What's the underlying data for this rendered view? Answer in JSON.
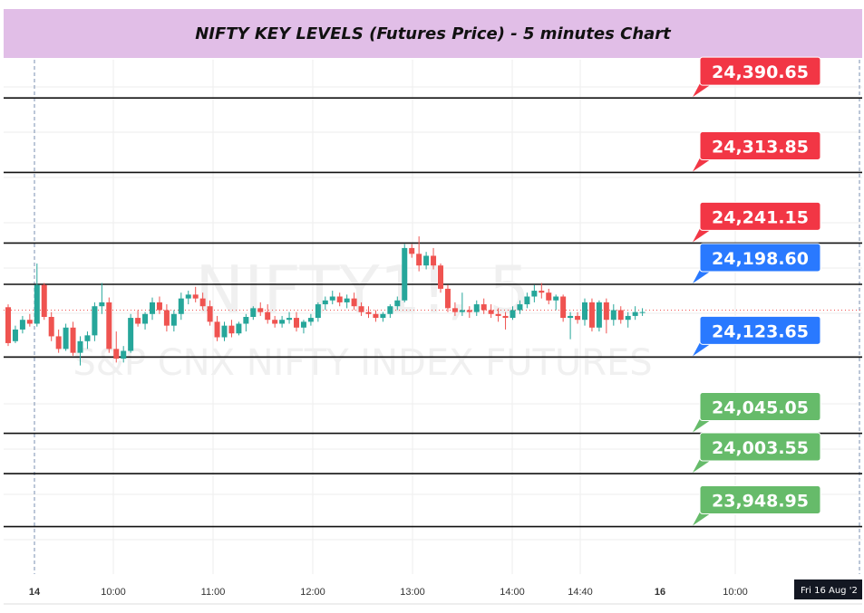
{
  "header": {
    "title": "NIFTY KEY LEVELS (Futures Price) - 5 minutes Chart"
  },
  "watermark": {
    "symbol": "NIFTY1!, 5",
    "name": "S&P CNX NIFTY INDEX FUTURES"
  },
  "colors": {
    "up": "#26a69a",
    "down": "#ef5350",
    "resistance": "#f23645",
    "pivot": "#2979ff",
    "support": "#66bb6a",
    "level_line": "#111111",
    "grid": "#eeeeee",
    "header_bg": "#e1bee7"
  },
  "chart_data": {
    "type": "candlestick",
    "title": "NIFTY KEY LEVELS (Futures Price) - 5 minutes Chart",
    "x_ticks": [
      {
        "label": "14",
        "bold": true
      },
      {
        "label": "10:00",
        "bold": false
      },
      {
        "label": "11:00",
        "bold": false
      },
      {
        "label": "12:00",
        "bold": false
      },
      {
        "label": "13:00",
        "bold": false
      },
      {
        "label": "14:00",
        "bold": false
      },
      {
        "label": "14:40",
        "bold": false
      },
      {
        "label": "16",
        "bold": true
      },
      {
        "label": "10:00",
        "bold": false
      }
    ],
    "date_badge": "Fri 16 Aug '2",
    "ylim": [
      23900,
      24430
    ],
    "levels": [
      {
        "value": 24390.65,
        "label": "24,390.65",
        "kind": "resistance"
      },
      {
        "value": 24313.85,
        "label": "24,313.85",
        "kind": "resistance"
      },
      {
        "value": 24241.15,
        "label": "24,241.15",
        "kind": "resistance"
      },
      {
        "value": 24198.6,
        "label": "24,198.60",
        "kind": "pivot"
      },
      {
        "value": 24123.65,
        "label": "24,123.65",
        "kind": "pivot"
      },
      {
        "value": 24045.05,
        "label": "24,045.05",
        "kind": "support"
      },
      {
        "value": 24003.55,
        "label": "24,003.55",
        "kind": "support"
      },
      {
        "value": 23948.95,
        "label": "23,948.95",
        "kind": "support"
      }
    ],
    "last_price": 24172,
    "candles": [
      [
        24175,
        24178,
        24135,
        24138
      ],
      [
        24140,
        24156,
        24138,
        24152
      ],
      [
        24152,
        24166,
        24148,
        24162
      ],
      [
        24162,
        24168,
        24155,
        24158
      ],
      [
        24158,
        24220,
        24155,
        24198
      ],
      [
        24198,
        24200,
        24162,
        24165
      ],
      [
        24165,
        24170,
        24140,
        24145
      ],
      [
        24145,
        24152,
        24128,
        24132
      ],
      [
        24132,
        24158,
        24130,
        24154
      ],
      [
        24154,
        24160,
        24125,
        24128
      ],
      [
        24128,
        24145,
        24115,
        24140
      ],
      [
        24140,
        24150,
        24132,
        24146
      ],
      [
        24146,
        24180,
        24140,
        24176
      ],
      [
        24176,
        24200,
        24168,
        24180
      ],
      [
        24180,
        24185,
        24128,
        24132
      ],
      [
        24132,
        24150,
        24118,
        24122
      ],
      [
        24122,
        24135,
        24118,
        24130
      ],
      [
        24130,
        24168,
        24128,
        24164
      ],
      [
        24164,
        24172,
        24155,
        24158
      ],
      [
        24158,
        24170,
        24152,
        24168
      ],
      [
        24168,
        24185,
        24162,
        24180
      ],
      [
        24180,
        24186,
        24168,
        24172
      ],
      [
        24172,
        24178,
        24150,
        24156
      ],
      [
        24156,
        24172,
        24150,
        24168
      ],
      [
        24168,
        24190,
        24162,
        24184
      ],
      [
        24184,
        24192,
        24178,
        24188
      ],
      [
        24188,
        24196,
        24180,
        24184
      ],
      [
        24184,
        24190,
        24172,
        24176
      ],
      [
        24176,
        24182,
        24156,
        24160
      ],
      [
        24160,
        24166,
        24140,
        24144
      ],
      [
        24144,
        24160,
        24140,
        24156
      ],
      [
        24156,
        24162,
        24144,
        24148
      ],
      [
        24148,
        24160,
        24146,
        24158
      ],
      [
        24158,
        24168,
        24150,
        24165
      ],
      [
        24165,
        24176,
        24162,
        24174
      ],
      [
        24174,
        24180,
        24166,
        24170
      ],
      [
        24170,
        24178,
        24158,
        24162
      ],
      [
        24162,
        24166,
        24154,
        24158
      ],
      [
        24158,
        24166,
        24154,
        24162
      ],
      [
        24162,
        24170,
        24158,
        24164
      ],
      [
        24164,
        24170,
        24150,
        24154
      ],
      [
        24154,
        24162,
        24148,
        24160
      ],
      [
        24160,
        24168,
        24156,
        24164
      ],
      [
        24164,
        24180,
        24160,
        24178
      ],
      [
        24178,
        24186,
        24172,
        24182
      ],
      [
        24182,
        24192,
        24178,
        24186
      ],
      [
        24186,
        24190,
        24176,
        24180
      ],
      [
        24180,
        24188,
        24174,
        24184
      ],
      [
        24184,
        24190,
        24172,
        24176
      ],
      [
        24176,
        24180,
        24166,
        24170
      ],
      [
        24170,
        24176,
        24164,
        24168
      ],
      [
        24168,
        24172,
        24160,
        24164
      ],
      [
        24164,
        24170,
        24160,
        24168
      ],
      [
        24168,
        24178,
        24164,
        24176
      ],
      [
        24176,
        24186,
        24172,
        24182
      ],
      [
        24182,
        24240,
        24180,
        24236
      ],
      [
        24236,
        24240,
        24226,
        24230
      ],
      [
        24230,
        24248,
        24212,
        24218
      ],
      [
        24218,
        24232,
        24214,
        24228
      ],
      [
        24228,
        24236,
        24214,
        24218
      ],
      [
        24218,
        24220,
        24190,
        24194
      ],
      [
        24194,
        24198,
        24170,
        24174
      ],
      [
        24174,
        24180,
        24166,
        24170
      ],
      [
        24170,
        24190,
        24166,
        24172
      ],
      [
        24172,
        24176,
        24164,
        24170
      ],
      [
        24170,
        24182,
        24166,
        24178
      ],
      [
        24178,
        24184,
        24168,
        24172
      ],
      [
        24172,
        24178,
        24164,
        24168
      ],
      [
        24168,
        24174,
        24160,
        24166
      ],
      [
        24166,
        24170,
        24152,
        24164
      ],
      [
        24164,
        24176,
        24162,
        24172
      ],
      [
        24172,
        24182,
        24168,
        24178
      ],
      [
        24178,
        24190,
        24174,
        24186
      ],
      [
        24186,
        24198,
        24180,
        24192
      ],
      [
        24192,
        24200,
        24184,
        24190
      ],
      [
        24190,
        24194,
        24178,
        24182
      ],
      [
        24182,
        24188,
        24172,
        24186
      ],
      [
        24186,
        24188,
        24160,
        24164
      ],
      [
        24164,
        24170,
        24142,
        24166
      ],
      [
        24166,
        24170,
        24158,
        24162
      ],
      [
        24162,
        24184,
        24156,
        24180
      ],
      [
        24180,
        24184,
        24150,
        24154
      ],
      [
        24154,
        24182,
        24150,
        24180
      ],
      [
        24180,
        24184,
        24148,
        24162
      ],
      [
        24162,
        24178,
        24156,
        24172
      ],
      [
        24172,
        24176,
        24158,
        24162
      ],
      [
        24162,
        24170,
        24154,
        24166
      ],
      [
        24166,
        24176,
        24162,
        24170
      ],
      [
        24170,
        24174,
        24166,
        24170
      ]
    ]
  }
}
